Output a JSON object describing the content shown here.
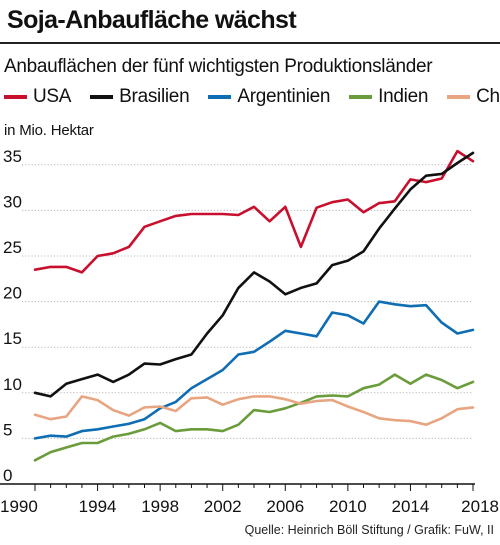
{
  "header": {
    "title": "Soja-Anbaufläche wächst",
    "subtitle": "Anbauflächen der fünf wichtigsten Produktionsländer"
  },
  "footer": {
    "source": "Quelle: Heinrich Böll Stiftung / Grafik: FuW, II"
  },
  "chart_data": {
    "type": "line",
    "title": "Soja-Anbaufläche wächst",
    "subtitle": "Anbauflächen der fünf wichtigsten Produktionsländer",
    "ylabel": "in Mio. Hektar",
    "xlabel": "",
    "xlim": [
      1990,
      2018
    ],
    "ylim": [
      0,
      37.5
    ],
    "x_ticks": [
      1990,
      1994,
      1998,
      2002,
      2006,
      2010,
      2014,
      2018
    ],
    "y_ticks": [
      0,
      5,
      10,
      15,
      20,
      25,
      30,
      35
    ],
    "grid": "horizontal",
    "legend_position": "top",
    "x": [
      1990,
      1991,
      1992,
      1993,
      1994,
      1995,
      1996,
      1997,
      1998,
      1999,
      2000,
      2001,
      2002,
      2003,
      2004,
      2005,
      2006,
      2007,
      2008,
      2009,
      2010,
      2011,
      2012,
      2013,
      2014,
      2015,
      2016,
      2017,
      2018
    ],
    "series": [
      {
        "name": "USA",
        "color": "#c8102e",
        "values": [
          23.5,
          23.8,
          23.8,
          23.2,
          25.0,
          25.3,
          26.0,
          28.2,
          28.8,
          29.4,
          29.6,
          29.6,
          29.6,
          29.5,
          30.4,
          28.8,
          30.4,
          26.0,
          30.3,
          30.9,
          31.2,
          29.8,
          30.8,
          31.0,
          33.4,
          33.1,
          33.5,
          36.5,
          35.4
        ]
      },
      {
        "name": "Brasilien",
        "color": "#111111",
        "values": [
          10.0,
          9.6,
          11.0,
          11.5,
          12.0,
          11.2,
          12.0,
          13.2,
          13.1,
          13.7,
          14.2,
          16.5,
          18.5,
          21.5,
          23.2,
          22.2,
          20.8,
          21.5,
          22.0,
          24.0,
          24.5,
          25.5,
          28.0,
          30.2,
          32.3,
          33.8,
          34.0,
          35.2,
          36.3
        ]
      },
      {
        "name": "Argentinien",
        "color": "#0f6db3",
        "values": [
          5.0,
          5.3,
          5.2,
          5.8,
          6.0,
          6.3,
          6.6,
          7.1,
          8.3,
          9.0,
          10.5,
          11.5,
          12.5,
          14.2,
          14.5,
          15.6,
          16.8,
          16.5,
          16.2,
          18.8,
          18.5,
          17.6,
          20.0,
          19.7,
          19.5,
          19.6,
          17.7,
          16.5,
          16.9
        ]
      },
      {
        "name": "Indien",
        "color": "#6a9c3b",
        "values": [
          2.6,
          3.5,
          4.0,
          4.5,
          4.5,
          5.2,
          5.5,
          6.0,
          6.7,
          5.8,
          6.0,
          6.0,
          5.8,
          6.5,
          8.1,
          7.9,
          8.3,
          8.9,
          9.6,
          9.7,
          9.6,
          10.5,
          10.9,
          12.0,
          11.0,
          12.0,
          11.4,
          10.5,
          11.2
        ]
      },
      {
        "name": "China",
        "color": "#e8a581",
        "values": [
          7.6,
          7.1,
          7.4,
          9.6,
          9.2,
          8.1,
          7.5,
          8.4,
          8.5,
          8.0,
          9.4,
          9.5,
          8.7,
          9.3,
          9.6,
          9.6,
          9.3,
          8.8,
          9.1,
          9.2,
          8.5,
          7.9,
          7.2,
          7.0,
          6.9,
          6.5,
          7.2,
          8.2,
          8.4
        ]
      }
    ]
  }
}
